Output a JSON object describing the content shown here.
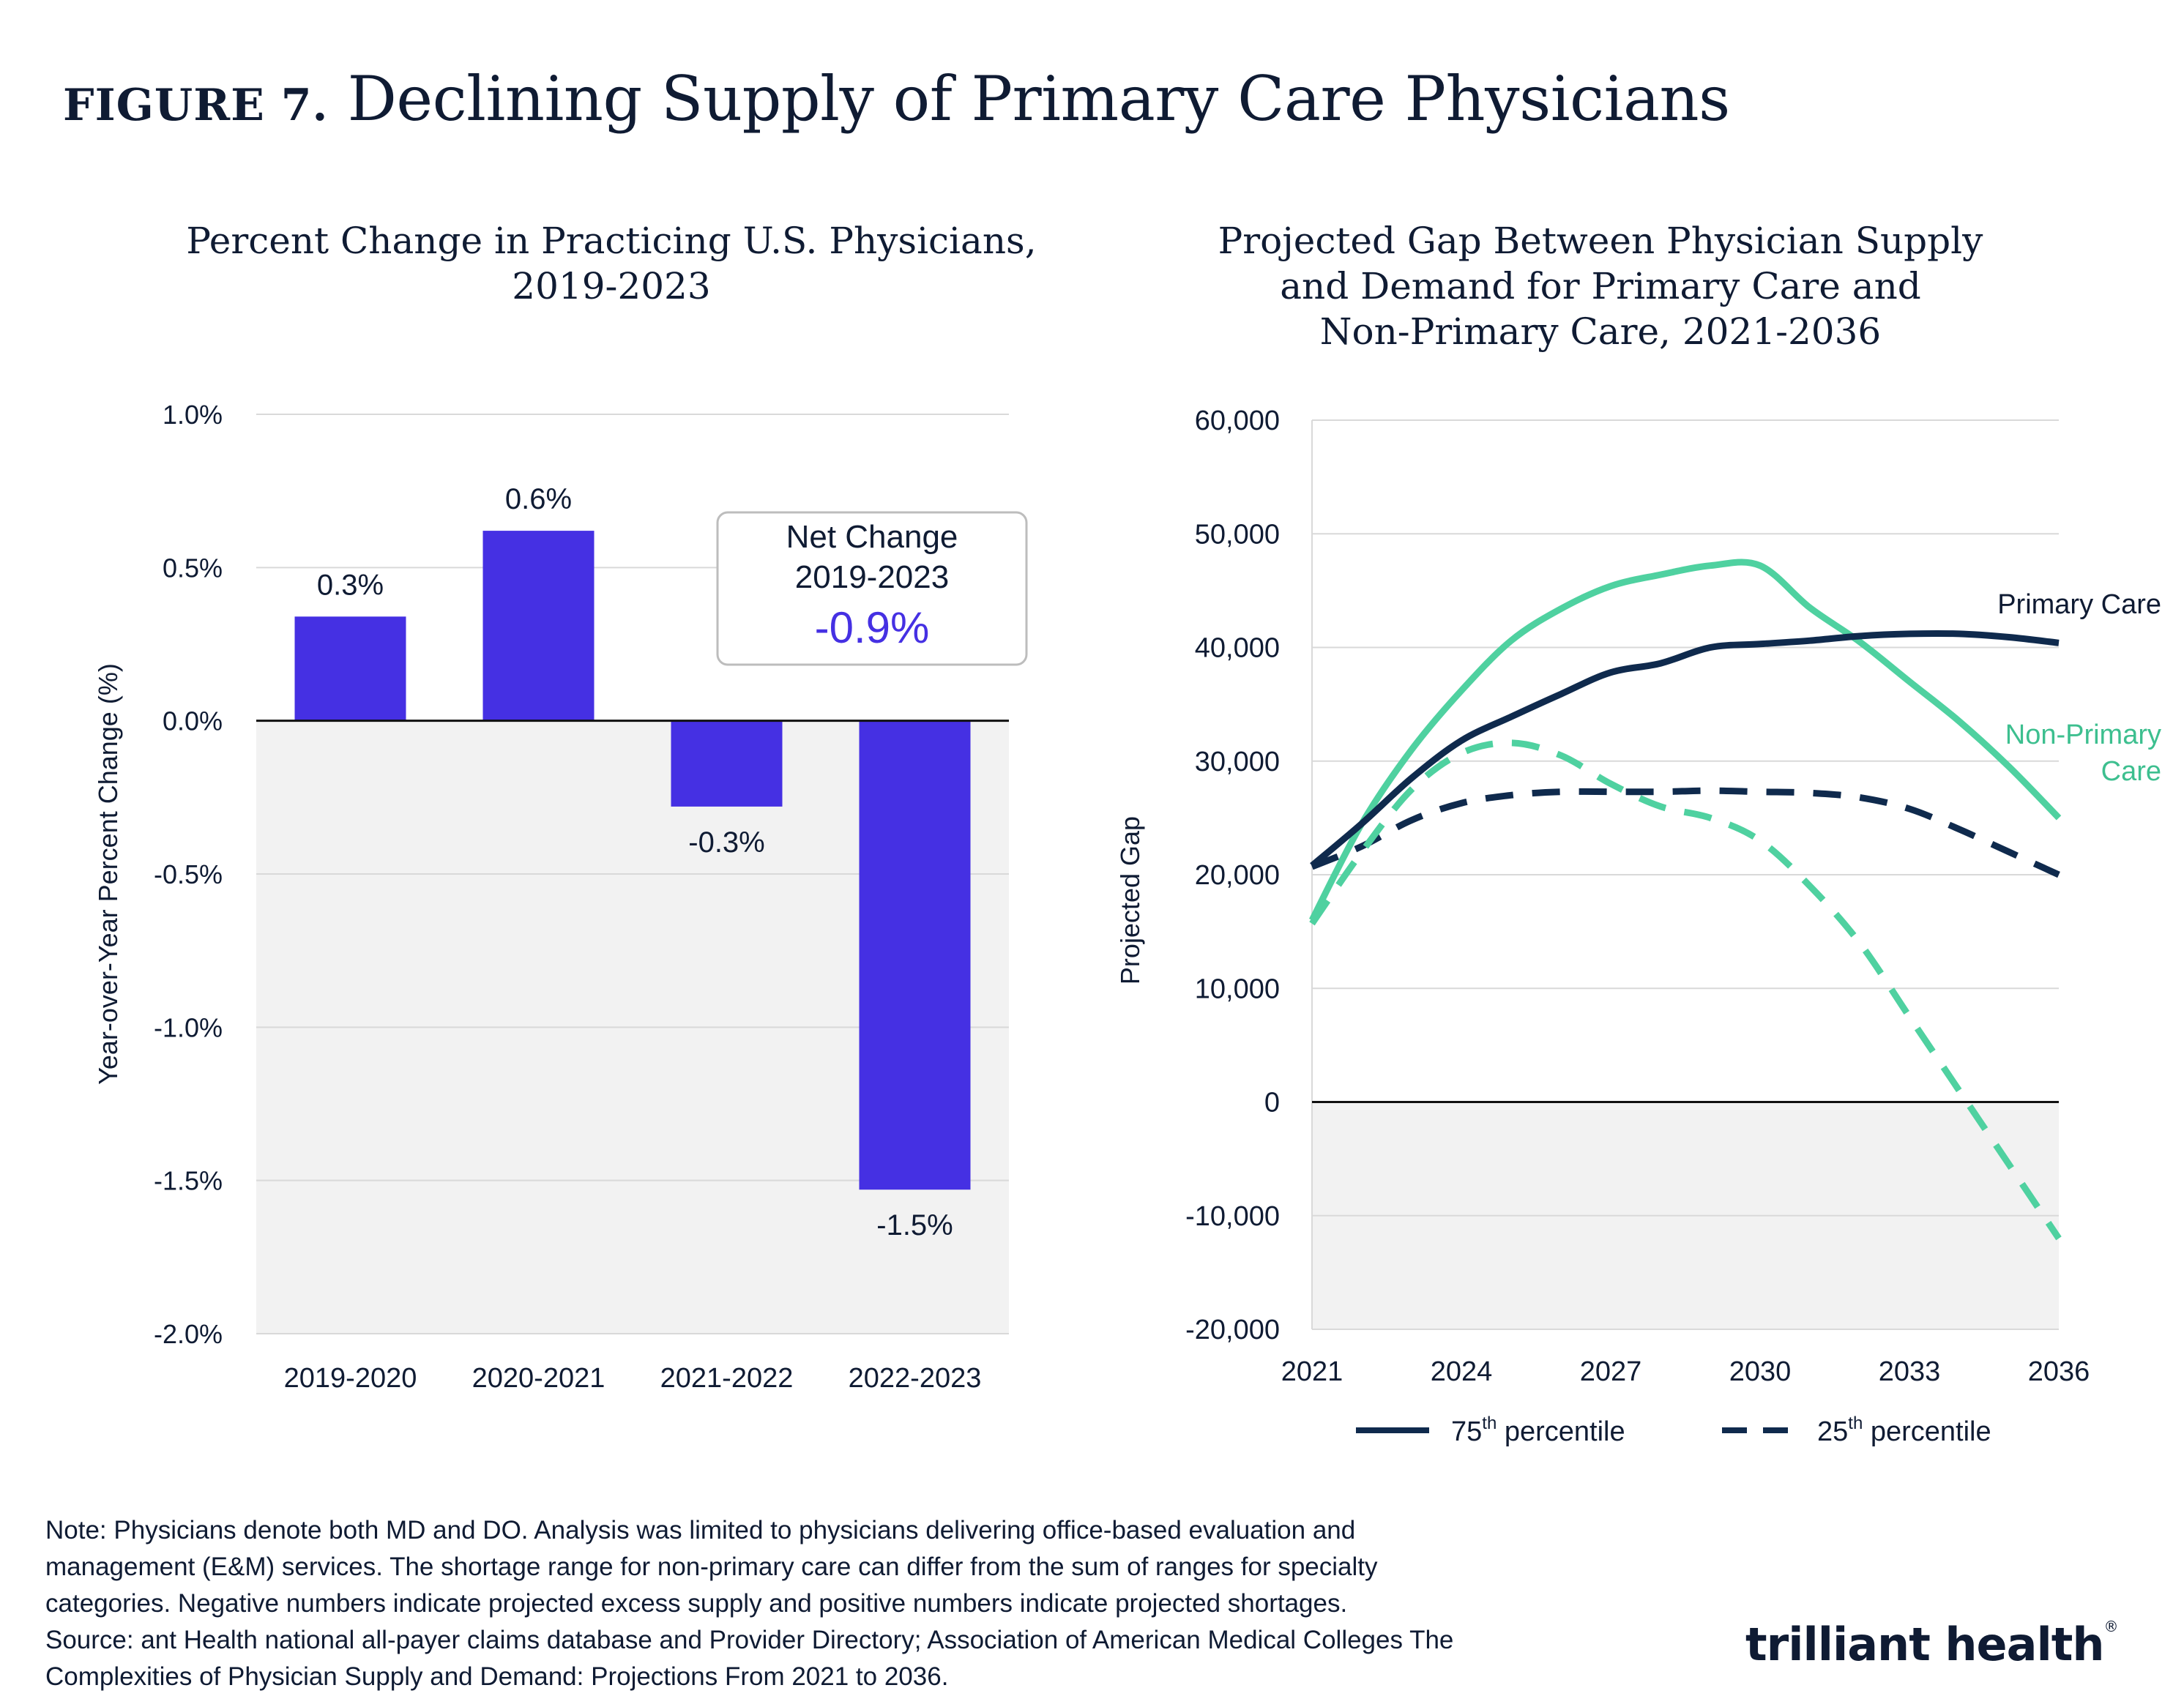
{
  "figure": {
    "label": "FIGURE 7.",
    "title": "Declining Supply of Primary Care Physicians"
  },
  "chart_data": [
    {
      "type": "bar",
      "title_lines": [
        "Percent Change in Practicing U.S. Physicians,",
        "2019-2023"
      ],
      "ylabel": "Year-over-Year Percent Change (%)",
      "xlabel": "",
      "ylim": [
        -2.0,
        1.0
      ],
      "yticks": [
        1.0,
        0.5,
        0.0,
        -0.5,
        -1.0,
        -1.5,
        -2.0
      ],
      "ytick_labels": [
        "1.0%",
        "0.5%",
        "0.0%",
        "-0.5%",
        "-1.0%",
        "-1.5%",
        "-2.0%"
      ],
      "categories": [
        "2019-2020",
        "2020-2021",
        "2021-2022",
        "2022-2023"
      ],
      "values": [
        0.34,
        0.62,
        -0.28,
        -1.53
      ],
      "value_labels": [
        "0.3%",
        "0.6%",
        "-0.3%",
        "-1.5%"
      ],
      "bar_color": "#4530e3",
      "grid": true,
      "negative_region_fill": "#f2f2f2",
      "annotation": {
        "lines": [
          "Net Change",
          "2019-2023"
        ],
        "value": "-0.9%",
        "value_color": "#4530e3",
        "placement": "top-right"
      }
    },
    {
      "type": "line",
      "title_lines": [
        "Projected Gap Between Physician Supply",
        "and Demand for Primary Care and",
        "Non-Primary Care, 2021-2036"
      ],
      "ylabel": "Projected Gap",
      "xlabel": "",
      "xlim": [
        2021,
        2036
      ],
      "ylim": [
        -20000,
        60000
      ],
      "xticks": [
        2021,
        2024,
        2027,
        2030,
        2033,
        2036
      ],
      "xtick_labels": [
        "2021",
        "2024",
        "2027",
        "2030",
        "2033",
        "2036"
      ],
      "yticks": [
        60000,
        50000,
        40000,
        30000,
        20000,
        10000,
        0,
        -10000,
        -20000
      ],
      "ytick_labels": [
        "60,000",
        "50,000",
        "40,000",
        "30,000",
        "20,000",
        "10,000",
        "0",
        "-10,000",
        "-20,000"
      ],
      "grid": true,
      "negative_region_fill": "#f2f2f2",
      "series": [
        {
          "name": "Primary Care",
          "percentile": "75th",
          "color": "#0f2a4d",
          "style": "solid",
          "x": [
            2021,
            2022,
            2023,
            2024,
            2025,
            2026,
            2027,
            2028,
            2029,
            2030,
            2031,
            2032,
            2033,
            2034,
            2035,
            2036
          ],
          "y": [
            20800,
            24500,
            28500,
            31800,
            33900,
            35900,
            37800,
            38600,
            40000,
            40300,
            40600,
            41000,
            41200,
            41200,
            40900,
            40400
          ]
        },
        {
          "name": "Primary Care",
          "percentile": "25th",
          "color": "#0f2a4d",
          "style": "dashed",
          "x": [
            2021,
            2022,
            2023,
            2024,
            2025,
            2026,
            2027,
            2028,
            2029,
            2030,
            2031,
            2032,
            2033,
            2034,
            2035,
            2036
          ],
          "y": [
            20700,
            22500,
            24800,
            26300,
            27000,
            27300,
            27300,
            27300,
            27400,
            27300,
            27200,
            26800,
            25800,
            24000,
            22000,
            20000
          ]
        },
        {
          "name": "Non-Primary Care",
          "percentile": "75th",
          "color": "#4fd1a0",
          "style": "solid",
          "x": [
            2021,
            2022,
            2023,
            2024,
            2025,
            2026,
            2027,
            2028,
            2029,
            2030,
            2031,
            2032,
            2033,
            2034,
            2035,
            2036
          ],
          "y": [
            16000,
            24500,
            31000,
            36200,
            40600,
            43400,
            45400,
            46400,
            47200,
            47200,
            43500,
            40500,
            37000,
            33500,
            29500,
            25000
          ]
        },
        {
          "name": "Non-Primary Care",
          "percentile": "25th",
          "color": "#4fd1a0",
          "style": "dashed",
          "x": [
            2021,
            2022,
            2023,
            2024,
            2025,
            2026,
            2027,
            2028,
            2029,
            2030,
            2031,
            2032,
            2033,
            2034,
            2035,
            2036
          ],
          "y": [
            15700,
            22000,
            27500,
            30700,
            31600,
            30500,
            28000,
            26000,
            25000,
            23000,
            19000,
            14000,
            7500,
            1000,
            -5500,
            -12000
          ]
        }
      ],
      "line_labels": [
        "Primary Care",
        "Non-Primary",
        "Care"
      ],
      "legend": {
        "placement": "bottom",
        "items": [
          {
            "sup": "th",
            "number": "75",
            "rest": " percentile",
            "style": "solid",
            "color": "#0f2a4d"
          },
          {
            "sup": "th",
            "number": "25",
            "rest": " percentile",
            "style": "dashed",
            "color": "#0f2a4d"
          }
        ]
      }
    }
  ],
  "note_lines": [
    "Note: Physicians denote both MD and DO. Analysis was limited to physicians delivering office-based evaluation and",
    "management (E&M) services. The shortage range for non-primary care can differ from the sum of ranges for specialty",
    "categories. Negative numbers indicate projected excess supply and positive numbers indicate projected shortages.",
    "Source: ant Health national all-payer claims database and Provider Directory; Association of American Medical Colleges The",
    "Complexities of Physician Supply and Demand: Projections From 2021 to 2036."
  ],
  "logo": {
    "text": "trilliant health",
    "mark": "®"
  }
}
